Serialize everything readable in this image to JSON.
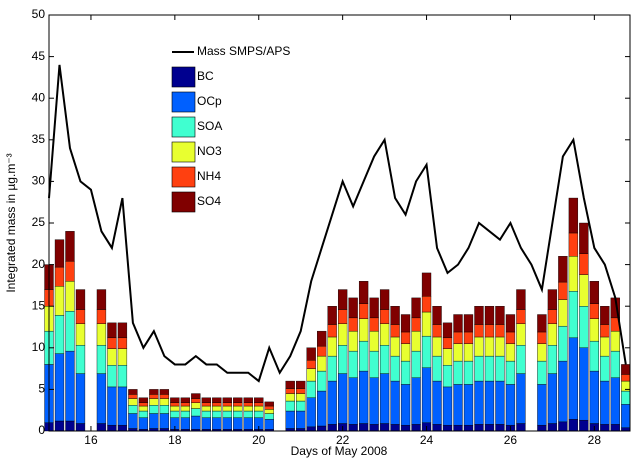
{
  "chart_data": {
    "type": "bar",
    "stacked": true,
    "xlabel": "Days of May 2008",
    "ylabel": "Integrated mass in µg.m⁻³",
    "x": [
      15,
      15.25,
      15.5,
      15.75,
      16,
      16.25,
      16.5,
      16.75,
      17,
      17.25,
      17.5,
      17.75,
      18,
      18.25,
      18.5,
      18.75,
      19,
      19.25,
      19.5,
      19.75,
      20,
      20.25,
      20.5,
      20.75,
      21,
      21.25,
      21.5,
      21.75,
      22,
      22.25,
      22.5,
      22.75,
      23,
      23.25,
      23.5,
      23.75,
      24,
      24.25,
      24.5,
      24.75,
      25,
      25.25,
      25.5,
      25.75,
      26,
      26.25,
      26.5,
      26.75,
      27,
      27.25,
      27.5,
      27.75,
      28,
      28.25,
      28.5,
      28.75
    ],
    "xlim": [
      15,
      28.85
    ],
    "xticks": [
      16,
      18,
      20,
      22,
      24,
      26,
      28
    ],
    "ylim": [
      0,
      50
    ],
    "yticks": [
      0,
      5,
      10,
      15,
      20,
      25,
      30,
      35,
      40,
      45,
      50
    ],
    "series": [
      {
        "name": "Mass SMPS/APS",
        "type": "line",
        "color": "#000000",
        "values": [
          28,
          44,
          34,
          30,
          29,
          24,
          22,
          28,
          13,
          10,
          12,
          9,
          8,
          8,
          9,
          8,
          8,
          7,
          7,
          7,
          6,
          10,
          7,
          9,
          12,
          18,
          22,
          26,
          30,
          27,
          30,
          33,
          35,
          28,
          26,
          30,
          32,
          22,
          19,
          20,
          22,
          25,
          24,
          23,
          25,
          22,
          20,
          17,
          25,
          33,
          35,
          28,
          22,
          20,
          16,
          8
        ]
      },
      {
        "name": "BC",
        "type": "bar",
        "color": "#00008f",
        "values": [
          1,
          1.2,
          1.2,
          0.9,
          null,
          0.9,
          0.7,
          0.7,
          0.3,
          0.2,
          0.3,
          0.3,
          0.2,
          0.2,
          0.2,
          0.2,
          0.2,
          0.2,
          0.2,
          0.2,
          0.2,
          0.2,
          null,
          0.3,
          0.3,
          0.5,
          0.6,
          0.8,
          0.9,
          0.8,
          0.9,
          0.8,
          0.9,
          0.8,
          0.7,
          0.8,
          1,
          0.8,
          0.7,
          0.7,
          0.7,
          0.8,
          0.8,
          0.8,
          0.7,
          0.9,
          null,
          0.7,
          0.9,
          1.1,
          1.4,
          1.3,
          0.9,
          0.8,
          0.8,
          0.4
        ]
      },
      {
        "name": "OCp",
        "type": "bar",
        "color": "#0060ff",
        "values": [
          7,
          8.1,
          8.4,
          6,
          null,
          6,
          4.6,
          4.6,
          1.8,
          1.4,
          1.8,
          1.8,
          1.4,
          1.4,
          1.6,
          1.4,
          1.4,
          1.4,
          1.4,
          1.4,
          1.4,
          1.2,
          null,
          2.1,
          2.1,
          3.5,
          4.2,
          5.2,
          6,
          5.6,
          6.3,
          5.6,
          6,
          5.2,
          4.9,
          5.6,
          6.6,
          5.2,
          4.6,
          4.9,
          4.9,
          5.2,
          5.2,
          5.2,
          4.9,
          6,
          null,
          4.9,
          6,
          7.3,
          9.8,
          8.7,
          6.3,
          5.2,
          5.6,
          2.8
        ]
      },
      {
        "name": "SOA",
        "type": "bar",
        "color": "#40ffd0",
        "values": [
          4,
          4.6,
          4.8,
          3.4,
          null,
          3.4,
          2.6,
          2.6,
          1,
          0.8,
          1,
          1,
          0.8,
          0.8,
          0.9,
          0.8,
          0.8,
          0.8,
          0.8,
          0.8,
          0.8,
          0.7,
          null,
          1.2,
          1.2,
          2,
          2.4,
          3,
          3.4,
          3.2,
          3.6,
          3.2,
          3.4,
          3,
          2.8,
          3.2,
          3.8,
          3,
          2.6,
          2.8,
          2.8,
          3,
          3,
          3,
          2.8,
          3.4,
          null,
          2.8,
          3.4,
          4.2,
          5.6,
          5,
          3.6,
          3,
          3.2,
          1.6
        ]
      },
      {
        "name": "NO3",
        "type": "bar",
        "color": "#e8ff30",
        "values": [
          3,
          3.5,
          3.6,
          2.6,
          null,
          2.6,
          2,
          2,
          0.8,
          0.6,
          0.8,
          0.8,
          0.6,
          0.6,
          0.7,
          0.6,
          0.6,
          0.6,
          0.6,
          0.6,
          0.6,
          0.5,
          null,
          0.9,
          0.9,
          1.5,
          1.8,
          2.3,
          2.6,
          2.4,
          2.7,
          2.4,
          2.6,
          2.3,
          2.1,
          2.4,
          2.9,
          2.3,
          2,
          2.1,
          2.1,
          2.3,
          2.3,
          2.3,
          2.1,
          2.6,
          null,
          2.1,
          2.6,
          3.2,
          4.2,
          3.8,
          2.7,
          2.3,
          2.4,
          1.2
        ]
      },
      {
        "name": "NH4",
        "type": "bar",
        "color": "#ff4010",
        "values": [
          2,
          2.3,
          2.4,
          1.7,
          null,
          1.7,
          1.3,
          1.3,
          0.5,
          0.4,
          0.5,
          0.5,
          0.4,
          0.4,
          0.5,
          0.4,
          0.4,
          0.4,
          0.4,
          0.4,
          0.4,
          0.4,
          null,
          0.6,
          0.6,
          1,
          1.2,
          1.5,
          1.7,
          1.6,
          1.8,
          1.6,
          1.7,
          1.5,
          1.4,
          1.6,
          1.9,
          1.5,
          1.3,
          1.4,
          1.4,
          1.5,
          1.5,
          1.5,
          1.4,
          1.7,
          null,
          1.4,
          1.7,
          2.1,
          2.8,
          2.5,
          1.8,
          1.5,
          1.6,
          0.8
        ]
      },
      {
        "name": "SO4",
        "type": "bar",
        "color": "#800000",
        "values": [
          3,
          3.3,
          3.6,
          2.4,
          null,
          2.4,
          1.8,
          1.8,
          0.6,
          0.6,
          0.6,
          0.6,
          0.6,
          0.6,
          0.6,
          0.6,
          0.6,
          0.6,
          0.6,
          0.6,
          0.6,
          0.5,
          null,
          0.9,
          0.9,
          1.5,
          1.8,
          2.2,
          2.4,
          2.4,
          2.7,
          2.4,
          2.4,
          2.2,
          2.1,
          2.4,
          2.8,
          2.2,
          1.8,
          2.1,
          2.1,
          2.2,
          2.2,
          2.2,
          2.1,
          2.4,
          null,
          2.1,
          2.4,
          3.1,
          4.2,
          3.7,
          2.7,
          2.2,
          2.4,
          1.2
        ]
      }
    ]
  }
}
